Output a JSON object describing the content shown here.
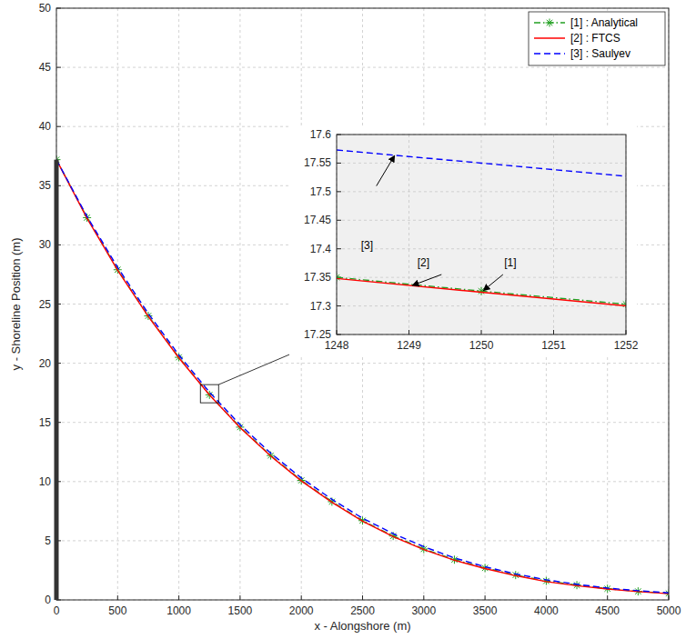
{
  "chart_data": [
    {
      "type": "line",
      "x_label": "x - Alongshore (m)",
      "y_label": "y - Shoreline Position (m)",
      "x": [
        0,
        250,
        500,
        750,
        1000,
        1250,
        1500,
        1750,
        2000,
        2250,
        2500,
        2750,
        3000,
        3250,
        3500,
        3750,
        4000,
        4250,
        4500,
        4750,
        5000
      ],
      "xlim": [
        0,
        5000
      ],
      "xticks": [
        0,
        500,
        1000,
        1500,
        2000,
        2500,
        3000,
        3500,
        4000,
        4500,
        5000
      ],
      "ylim": [
        0,
        50
      ],
      "yticks": [
        0,
        5,
        10,
        15,
        20,
        25,
        30,
        35,
        40,
        45,
        50
      ],
      "grid": true,
      "legend": "upper right",
      "series": [
        {
          "name": "[1] : Analytical",
          "color": "#22a022",
          "line_style": "dashdot",
          "marker": "asterisk",
          "values": [
            37.2,
            32.3,
            27.9,
            24.0,
            20.5,
            17.33,
            14.6,
            12.2,
            10.1,
            8.3,
            6.7,
            5.4,
            4.3,
            3.4,
            2.7,
            2.1,
            1.6,
            1.25,
            0.95,
            0.72,
            0.55
          ]
        },
        {
          "name": "[2] : FTCS",
          "color": "#ff0000",
          "line_style": "solid",
          "marker": "none",
          "values": [
            37.2,
            32.25,
            27.85,
            23.95,
            20.45,
            17.32,
            14.55,
            12.15,
            10.05,
            8.25,
            6.65,
            5.35,
            4.25,
            3.35,
            2.65,
            2.05,
            1.55,
            1.2,
            0.92,
            0.7,
            0.53
          ]
        },
        {
          "name": "[3] : Saulyev",
          "color": "#0000ff",
          "line_style": "dashed",
          "marker": "none",
          "values": [
            37.2,
            32.4,
            28.1,
            24.2,
            20.7,
            17.55,
            14.8,
            12.4,
            10.3,
            8.5,
            6.9,
            5.6,
            4.5,
            3.55,
            2.8,
            2.2,
            1.7,
            1.32,
            1.0,
            0.78,
            0.6
          ]
        }
      ]
    },
    {
      "type": "line",
      "x": [
        1248,
        1250,
        1252
      ],
      "xlim": [
        1248,
        1252
      ],
      "xticks": [
        1248,
        1249,
        1250,
        1251,
        1252
      ],
      "ylim": [
        17.25,
        17.6
      ],
      "yticks": [
        17.25,
        17.3,
        17.35,
        17.4,
        17.45,
        17.5,
        17.55,
        17.6
      ],
      "grid": true,
      "series": [
        {
          "color": "#22a022",
          "line_style": "dashdot",
          "marker": "asterisk",
          "values": [
            17.35,
            17.326,
            17.303
          ]
        },
        {
          "color": "#ff0000",
          "line_style": "solid",
          "marker": "none",
          "values": [
            17.348,
            17.324,
            17.3
          ]
        },
        {
          "color": "#0000ff",
          "line_style": "dashed",
          "marker": "none",
          "values": [
            17.573,
            17.55,
            17.527
          ]
        }
      ],
      "annotations": [
        {
          "text": "[3]",
          "x": 1248.42,
          "y": 17.4,
          "arrow_from": [
            1248.55,
            17.51
          ],
          "arrow_to": [
            1248.8,
            17.563
          ]
        },
        {
          "text": "[2]",
          "x": 1249.2,
          "y": 17.37,
          "arrow_from": [
            1249.45,
            17.355
          ],
          "arrow_to": [
            1249.05,
            17.336
          ]
        },
        {
          "text": "[1]",
          "x": 1250.4,
          "y": 17.37,
          "arrow_from": [
            1250.3,
            17.355
          ],
          "arrow_to": [
            1250.03,
            17.327
          ]
        }
      ]
    }
  ]
}
